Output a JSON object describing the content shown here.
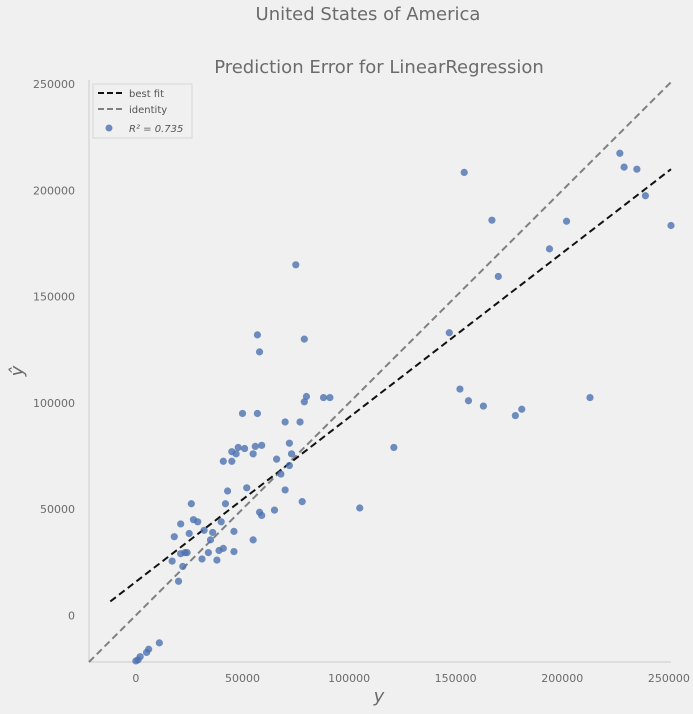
{
  "suptitle": "United States of America",
  "chart_data": {
    "type": "scatter",
    "title": "Prediction Error for LinearRegression",
    "xlabel": "y",
    "ylabel": "ŷ",
    "xlim": [
      -22000,
      251000
    ],
    "ylim": [
      -22000,
      252000
    ],
    "xticks": [
      0,
      50000,
      100000,
      150000,
      200000,
      250000
    ],
    "yticks": [
      0,
      50000,
      100000,
      150000,
      200000,
      250000
    ],
    "grid": false,
    "legend_position": "top-left",
    "legend": [
      {
        "label": "best fit",
        "style": "dashed",
        "color": "#111111"
      },
      {
        "label": "identity",
        "style": "dashed",
        "color": "#808080"
      },
      {
        "label": "R² = 0.735",
        "style": "marker",
        "color": "#4c72b0"
      }
    ],
    "best_fit": {
      "x": [
        -12000,
        251000
      ],
      "y": [
        6500,
        210000
      ]
    },
    "identity": {
      "x": [
        -22000,
        251000
      ],
      "y": [
        -22000,
        251000
      ]
    },
    "points": [
      [
        0,
        -21500
      ],
      [
        1000,
        -21000
      ],
      [
        2000,
        -19500
      ],
      [
        5000,
        -17500
      ],
      [
        6000,
        -16000
      ],
      [
        11000,
        -13000
      ],
      [
        17000,
        25500
      ],
      [
        18000,
        37000
      ],
      [
        20000,
        16000
      ],
      [
        21000,
        29000
      ],
      [
        21000,
        43000
      ],
      [
        22000,
        23000
      ],
      [
        23000,
        29500
      ],
      [
        24000,
        29500
      ],
      [
        25000,
        38500
      ],
      [
        26000,
        52500
      ],
      [
        27000,
        45000
      ],
      [
        29000,
        44000
      ],
      [
        31000,
        26500
      ],
      [
        32000,
        40000
      ],
      [
        34000,
        29500
      ],
      [
        35000,
        35500
      ],
      [
        36000,
        39000
      ],
      [
        38000,
        26000
      ],
      [
        39000,
        30500
      ],
      [
        40000,
        44000
      ],
      [
        41000,
        31500
      ],
      [
        41000,
        72500
      ],
      [
        42000,
        52500
      ],
      [
        43000,
        58500
      ],
      [
        45000,
        72500
      ],
      [
        45000,
        77000
      ],
      [
        46000,
        30000
      ],
      [
        46000,
        39500
      ],
      [
        47000,
        76000
      ],
      [
        48000,
        79000
      ],
      [
        50000,
        95000
      ],
      [
        51000,
        78500
      ],
      [
        52000,
        60000
      ],
      [
        55000,
        35500
      ],
      [
        55000,
        76000
      ],
      [
        56000,
        79500
      ],
      [
        57000,
        95000
      ],
      [
        57000,
        132000
      ],
      [
        58000,
        124000
      ],
      [
        58000,
        48500
      ],
      [
        59000,
        47000
      ],
      [
        59000,
        80000
      ],
      [
        65000,
        49500
      ],
      [
        66000,
        73500
      ],
      [
        68000,
        66500
      ],
      [
        70000,
        91000
      ],
      [
        70000,
        59000
      ],
      [
        72000,
        81000
      ],
      [
        72000,
        70500
      ],
      [
        73000,
        76000
      ],
      [
        75000,
        165000
      ],
      [
        77000,
        91000
      ],
      [
        78000,
        53500
      ],
      [
        79000,
        100500
      ],
      [
        79000,
        130000
      ],
      [
        80000,
        103000
      ],
      [
        88000,
        102500
      ],
      [
        91000,
        102500
      ],
      [
        105000,
        50500
      ],
      [
        121000,
        79000
      ],
      [
        147000,
        133000
      ],
      [
        152000,
        106500
      ],
      [
        154000,
        208500
      ],
      [
        156000,
        101000
      ],
      [
        163000,
        98500
      ],
      [
        167000,
        186000
      ],
      [
        170000,
        159500
      ],
      [
        178000,
        94000
      ],
      [
        181000,
        97000
      ],
      [
        194000,
        172500
      ],
      [
        202000,
        185500
      ],
      [
        213000,
        102500
      ],
      [
        227000,
        217500
      ],
      [
        229000,
        211000
      ],
      [
        235000,
        210000
      ],
      [
        239000,
        197500
      ],
      [
        251000,
        183500
      ]
    ]
  }
}
